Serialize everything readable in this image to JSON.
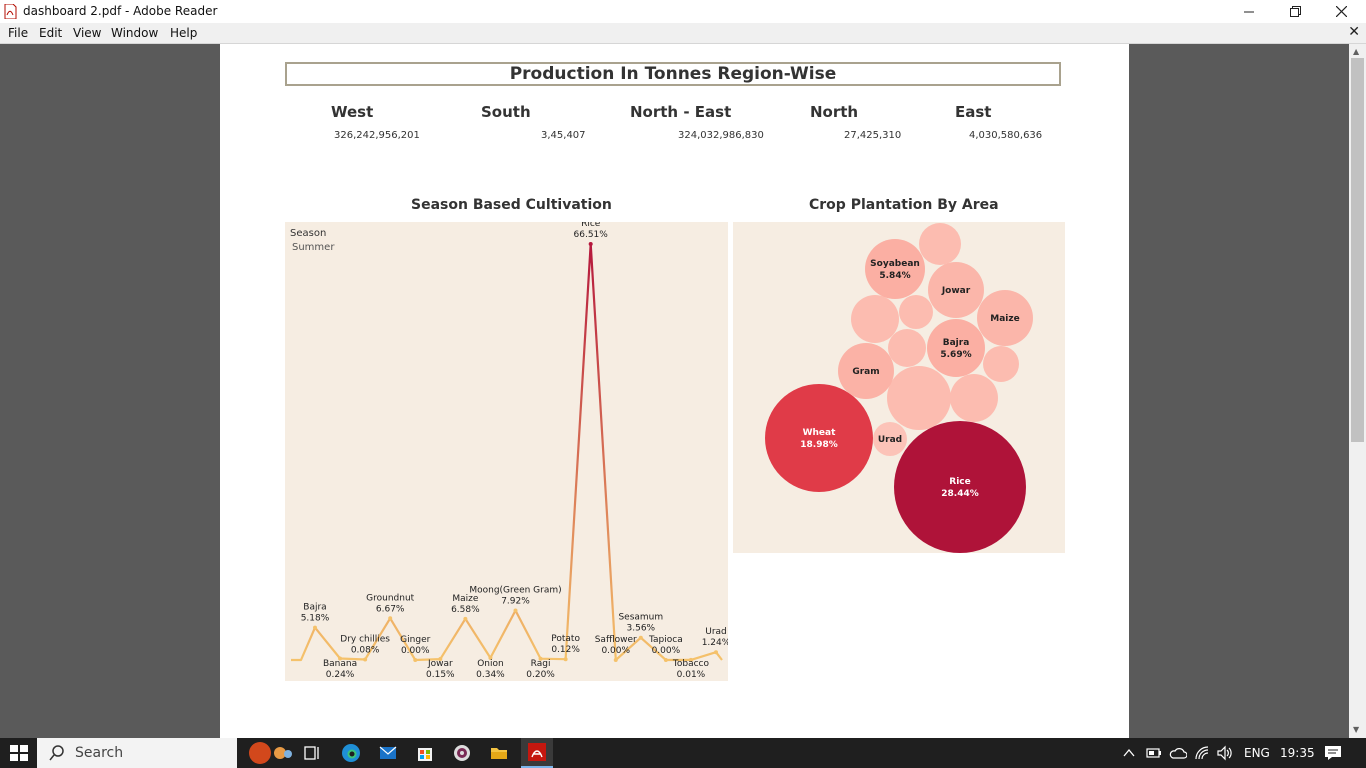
{
  "window": {
    "title": "dashboard 2.pdf - Adobe Reader",
    "menu": [
      "File",
      "Edit",
      "View",
      "Window",
      "Help"
    ]
  },
  "dashboard": {
    "title": "Production In Tonnes Region-Wise",
    "regions": [
      {
        "name": "West",
        "value": "326,242,956,201"
      },
      {
        "name": "South",
        "value": "3,45,407"
      },
      {
        "name": "North - East",
        "value": "324,032,986,830"
      },
      {
        "name": "North",
        "value": "27,425,310"
      },
      {
        "name": "East",
        "value": "4,030,580,636"
      }
    ],
    "season_panel": {
      "title": "Season Based Cultivation",
      "legend_title": "Season",
      "legend_value": "Summer"
    },
    "crop_panel": {
      "title": "Crop Plantation By Area"
    }
  },
  "chart_data": [
    {
      "type": "line",
      "title": "Season Based Cultivation",
      "series": [
        {
          "name": "Summer"
        }
      ],
      "points": [
        {
          "crop": "Bajra",
          "label": "5.18%",
          "value": 5.18
        },
        {
          "crop": "Banana",
          "label": "0.24%",
          "value": 0.24
        },
        {
          "crop": "Dry chillies",
          "label": "0.08%",
          "value": 0.08
        },
        {
          "crop": "Groundnut",
          "label": "6.67%",
          "value": 6.67
        },
        {
          "crop": "Ginger",
          "label": "0.00%",
          "value": 0.0
        },
        {
          "crop": "Jowar",
          "label": "0.15%",
          "value": 0.15
        },
        {
          "crop": "Maize",
          "label": "6.58%",
          "value": 6.58
        },
        {
          "crop": "Onion",
          "label": "0.34%",
          "value": 0.34
        },
        {
          "crop": "Moong(Green Gram)",
          "label": "7.92%",
          "value": 7.92
        },
        {
          "crop": "Ragi",
          "label": "0.20%",
          "value": 0.2
        },
        {
          "crop": "Potato",
          "label": "0.12%",
          "value": 0.12
        },
        {
          "crop": "Rice",
          "label": "66.51%",
          "value": 66.51
        },
        {
          "crop": "Safflower",
          "label": "0.00%",
          "value": 0.0
        },
        {
          "crop": "Sesamum",
          "label": "3.56%",
          "value": 3.56
        },
        {
          "crop": "Tapioca",
          "label": "0.00%",
          "value": 0.0
        },
        {
          "crop": "Tobacco",
          "label": "0.01%",
          "value": 0.01
        },
        {
          "crop": "Urad",
          "label": "1.24%",
          "value": 1.24
        }
      ]
    },
    {
      "type": "bubble",
      "title": "Crop Plantation By Area",
      "bubbles": [
        {
          "crop": "Rice",
          "label": "28.44%",
          "value": 28.44
        },
        {
          "crop": "Wheat",
          "label": "18.98%",
          "value": 18.98
        },
        {
          "crop": "Soyabean",
          "label": "5.84%",
          "value": 5.84
        },
        {
          "crop": "Bajra",
          "label": "5.69%",
          "value": 5.69
        },
        {
          "crop": "Jowar",
          "label": ""
        },
        {
          "crop": "Maize",
          "label": ""
        },
        {
          "crop": "Gram",
          "label": ""
        },
        {
          "crop": "Urad",
          "label": ""
        }
      ]
    }
  ],
  "taskbar": {
    "search_placeholder": "Search",
    "language": "ENG",
    "time": "19:35"
  }
}
